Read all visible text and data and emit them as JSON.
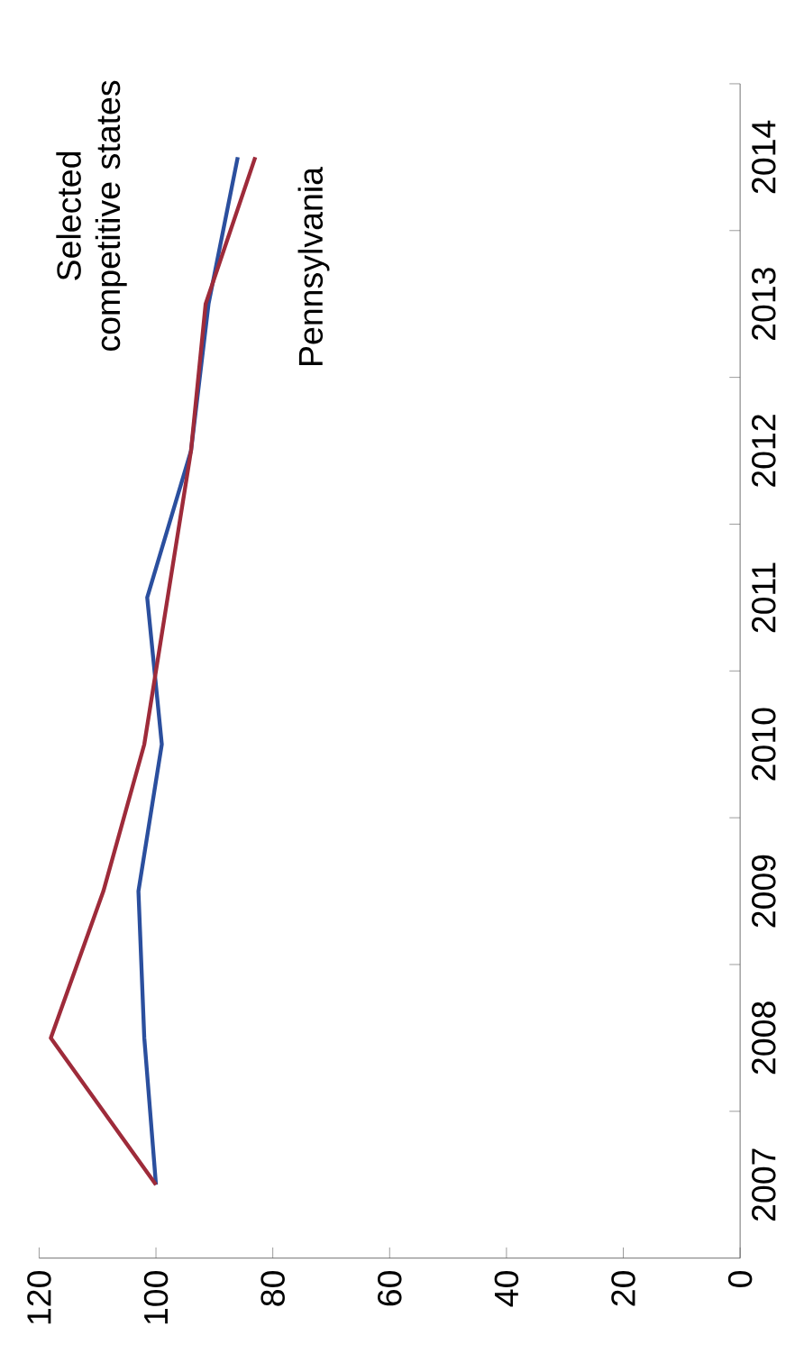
{
  "chart_data": {
    "type": "line",
    "orientation": "horizontal",
    "categories": [
      "2014",
      "2013",
      "2012",
      "2011",
      "2010",
      "2009",
      "2008",
      "2007"
    ],
    "series": [
      {
        "name": "Selected competitive states",
        "color": "#2b4f9e",
        "values": [
          86,
          91,
          94,
          101.5,
          99,
          103,
          102,
          100
        ]
      },
      {
        "name": "Pennsylvania",
        "color": "#9e2b3a",
        "values": [
          83,
          91.5,
          94,
          98,
          102,
          109,
          118,
          100
        ]
      }
    ],
    "xlim": [
      120,
      0
    ],
    "xticks": [
      0,
      20,
      40,
      60,
      80,
      100,
      120
    ],
    "grid": false,
    "legend": false,
    "marker": "none",
    "line_style": "solid"
  }
}
